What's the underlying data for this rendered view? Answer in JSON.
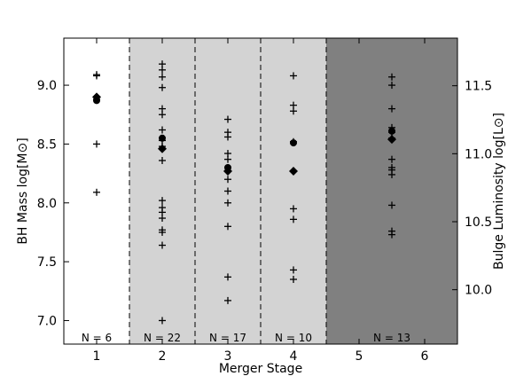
{
  "chart_data": {
    "type": "scatter",
    "xlabel": "Merger Stage",
    "ylabel_left": "BH Mass log[M⊙]",
    "ylabel_right": "Bulge Luminosity log[L⊙]",
    "xlim": [
      0.5,
      6.5
    ],
    "ylim_left": [
      6.8,
      9.4
    ],
    "ylim_right": [
      9.6,
      11.85
    ],
    "x_ticks": [
      "1",
      "2",
      "3",
      "4",
      "5",
      "6"
    ],
    "y_ticks_left": [
      "7.0",
      "7.5",
      "8.0",
      "8.5",
      "9.0"
    ],
    "y_ticks_right": [
      "10.0",
      "10.5",
      "11.0",
      "11.5"
    ],
    "y_tick_values_left": [
      7.0,
      7.5,
      8.0,
      8.5,
      9.0
    ],
    "y_tick_values_right": [
      10.0,
      10.5,
      11.0,
      11.5
    ],
    "grid": false,
    "stage_regions": [
      {
        "x_range": [
          0.5,
          1.5
        ],
        "shade": "#ffffff",
        "n_label": "N = 6",
        "n_x": 1.0
      },
      {
        "x_range": [
          1.5,
          2.5
        ],
        "shade": "#d3d3d3",
        "n_label": "N = 22",
        "n_x": 2.0
      },
      {
        "x_range": [
          2.5,
          3.5
        ],
        "shade": "#d3d3d3",
        "n_label": "N = 17",
        "n_x": 3.0
      },
      {
        "x_range": [
          3.5,
          4.5
        ],
        "shade": "#d3d3d3",
        "n_label": "N = 10",
        "n_x": 4.0
      },
      {
        "x_range": [
          4.5,
          6.5
        ],
        "shade": "#808080",
        "n_label": "N = 13",
        "n_x": 5.5
      }
    ],
    "dashed_boundaries": [
      1.5,
      2.5,
      3.5,
      4.5
    ],
    "series": [
      {
        "marker": "plus",
        "points": [
          [
            1,
            9.09
          ],
          [
            1,
            9.08
          ],
          [
            1,
            8.88
          ],
          [
            1,
            8.5
          ],
          [
            1,
            8.09
          ],
          [
            2,
            9.18
          ],
          [
            2,
            9.13
          ],
          [
            2,
            9.07
          ],
          [
            2,
            8.98
          ],
          [
            2,
            8.8
          ],
          [
            2,
            8.75
          ],
          [
            2,
            8.62
          ],
          [
            2,
            8.53
          ],
          [
            2,
            8.48
          ],
          [
            2,
            8.36
          ],
          [
            2,
            8.02
          ],
          [
            2,
            7.96
          ],
          [
            2,
            7.92
          ],
          [
            2,
            7.87
          ],
          [
            2,
            7.77
          ],
          [
            2,
            7.75
          ],
          [
            2,
            7.64
          ],
          [
            2,
            7.0
          ],
          [
            3,
            8.71
          ],
          [
            3,
            8.6
          ],
          [
            3,
            8.56
          ],
          [
            3,
            8.42
          ],
          [
            3,
            8.37
          ],
          [
            3,
            8.3
          ],
          [
            3,
            8.27
          ],
          [
            3,
            8.2
          ],
          [
            3,
            8.1
          ],
          [
            3,
            8.0
          ],
          [
            3,
            7.8
          ],
          [
            3,
            7.37
          ],
          [
            3,
            7.17
          ],
          [
            4,
            9.08
          ],
          [
            4,
            8.83
          ],
          [
            4,
            8.78
          ],
          [
            4,
            8.52
          ],
          [
            4,
            8.27
          ],
          [
            4,
            7.95
          ],
          [
            4,
            7.86
          ],
          [
            4,
            7.43
          ],
          [
            4,
            7.35
          ],
          [
            5.5,
            9.07
          ],
          [
            5.5,
            9.0
          ],
          [
            5.5,
            8.8
          ],
          [
            5.5,
            8.64
          ],
          [
            5.5,
            8.6
          ],
          [
            5.5,
            8.55
          ],
          [
            5.5,
            8.37
          ],
          [
            5.5,
            8.3
          ],
          [
            5.5,
            8.28
          ],
          [
            5.5,
            8.24
          ],
          [
            5.5,
            7.98
          ],
          [
            5.5,
            7.76
          ],
          [
            5.5,
            7.73
          ]
        ]
      },
      {
        "marker": "circle",
        "points": [
          [
            1,
            8.87
          ],
          [
            2,
            8.55
          ],
          [
            3,
            8.3
          ],
          [
            4,
            8.51
          ],
          [
            5.5,
            8.61
          ]
        ]
      },
      {
        "marker": "diamond",
        "points": [
          [
            1,
            8.9
          ],
          [
            2,
            8.46
          ],
          [
            3,
            8.27
          ],
          [
            4,
            8.27
          ],
          [
            5.5,
            8.54
          ]
        ]
      }
    ]
  }
}
